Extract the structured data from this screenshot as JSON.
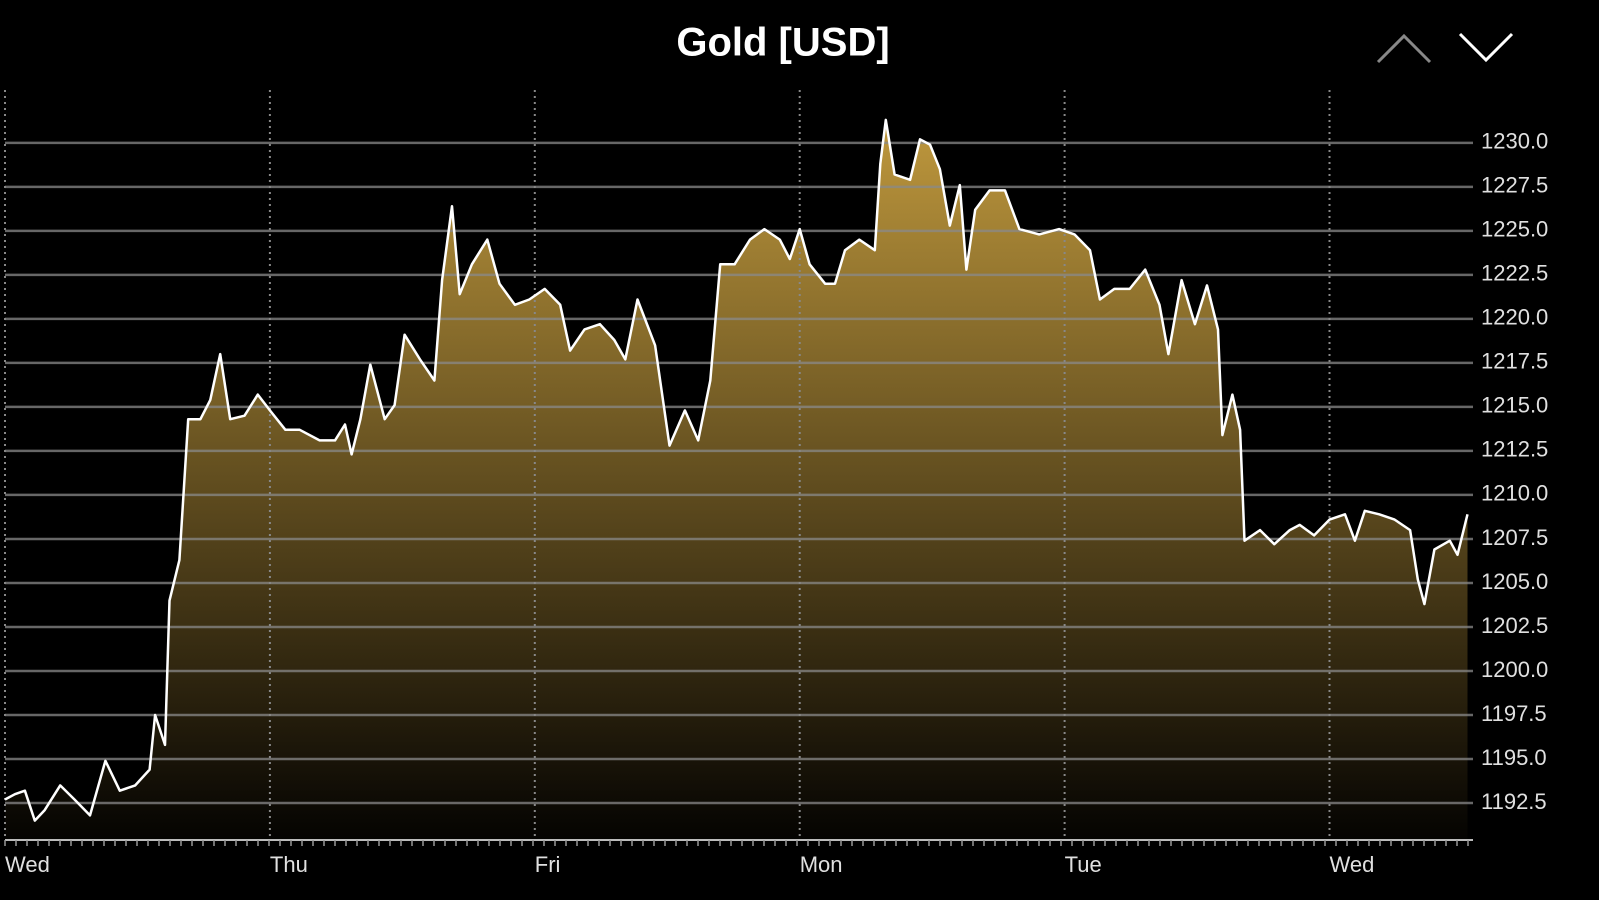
{
  "chart_data": {
    "type": "area",
    "title": "Gold [USD]",
    "x": [
      0,
      0.9,
      1.8,
      2.7,
      3.6,
      5.0,
      6.3,
      7.7,
      9.1,
      10.4,
      11.8,
      13.1,
      13.6,
      14.5,
      14.9,
      15.8,
      16.6,
      17.7,
      18.6,
      19.5,
      20.4,
      21.7,
      22.9,
      24.0,
      25.4,
      26.7,
      28.5,
      29.9,
      30.8,
      31.4,
      32.2,
      33.1,
      34.4,
      35.3,
      36.2,
      37.6,
      38.9,
      39.6,
      40.5,
      41.2,
      42.3,
      43.7,
      44.8,
      46.2,
      47.5,
      48.9,
      50.3,
      51.2,
      52.5,
      53.9,
      55.2,
      56.2,
      57.3,
      58.9,
      60.2,
      61.6,
      62.8,
      63.9,
      64.8,
      66.1,
      67.5,
      68.8,
      70.2,
      71.1,
      72.0,
      72.9,
      74.3,
      75.2,
      76.1,
      77.4,
      78.8,
      79.3,
      79.8,
      80.6,
      82.0,
      82.9,
      83.8,
      84.7,
      85.6,
      86.5,
      87.1,
      87.9,
      89.2,
      90.6,
      91.9,
      93.7,
      95.5,
      96.9,
      98.3,
      99.2,
      100.5,
      101.9,
      103.3,
      104.6,
      105.4,
      106.6,
      107.8,
      108.9,
      109.9,
      110.3,
      111.2,
      111.9,
      112.3,
      113.7,
      115.0,
      116.4,
      117.3,
      118.6,
      120.0,
      121.4,
      122.3,
      123.2,
      124.5,
      125.9,
      127.3,
      128.0,
      128.6,
      129.5,
      130.9,
      131.6,
      132.5
    ],
    "series": [
      {
        "name": "Gold",
        "color": "#ffffff",
        "values": [
          1192.7,
          1193.0,
          1193.2,
          1191.5,
          1192.1,
          1193.5,
          1192.7,
          1191.8,
          1194.9,
          1193.2,
          1193.5,
          1194.4,
          1197.5,
          1195.8,
          1204.0,
          1206.3,
          1214.3,
          1214.3,
          1215.4,
          1218.0,
          1214.3,
          1214.5,
          1215.7,
          1214.8,
          1213.7,
          1213.7,
          1213.1,
          1213.1,
          1214.0,
          1212.3,
          1214.3,
          1217.4,
          1214.3,
          1215.1,
          1219.1,
          1217.7,
          1216.5,
          1222.2,
          1226.4,
          1221.4,
          1223.1,
          1224.5,
          1222.0,
          1220.8,
          1221.1,
          1221.7,
          1220.8,
          1218.2,
          1219.4,
          1219.7,
          1218.8,
          1217.7,
          1221.1,
          1218.5,
          1212.8,
          1214.8,
          1213.1,
          1216.5,
          1223.1,
          1223.1,
          1224.5,
          1225.1,
          1224.5,
          1223.4,
          1225.1,
          1223.1,
          1222.0,
          1222.0,
          1223.9,
          1224.5,
          1223.9,
          1228.8,
          1231.3,
          1228.2,
          1227.9,
          1230.2,
          1229.9,
          1228.5,
          1225.3,
          1227.6,
          1222.8,
          1226.2,
          1227.3,
          1227.3,
          1225.1,
          1224.8,
          1225.1,
          1224.8,
          1223.9,
          1221.1,
          1221.7,
          1221.7,
          1222.8,
          1220.8,
          1218.0,
          1222.2,
          1219.7,
          1221.9,
          1219.4,
          1213.4,
          1215.7,
          1213.7,
          1207.4,
          1208.0,
          1207.2,
          1208.0,
          1208.3,
          1207.7,
          1208.6,
          1208.9,
          1207.4,
          1209.1,
          1208.9,
          1208.6,
          1208.0,
          1205.2,
          1203.8,
          1206.9,
          1207.4,
          1206.6,
          1208.9
        ]
      }
    ],
    "fill_color": "#c9a040",
    "xlim": [
      0,
      133
    ],
    "xticks": [
      {
        "value": 0,
        "label": "Wed"
      },
      {
        "value": 24,
        "label": "Thu"
      },
      {
        "value": 48,
        "label": "Fri"
      },
      {
        "value": 72,
        "label": "Mon"
      },
      {
        "value": 96,
        "label": "Tue"
      },
      {
        "value": 120,
        "label": "Wed"
      }
    ],
    "ylim": [
      1190.4,
      1233.0
    ],
    "yticks": [
      1192.5,
      {
        "value": 1195,
        "label": "1195.0"
      },
      1197.5,
      {
        "value": 1200,
        "label": "1200.0"
      },
      1202.5,
      {
        "value": 1205,
        "label": "1205.0"
      },
      1207.5,
      {
        "value": 1210,
        "label": "1210.0"
      },
      1212.5,
      {
        "value": 1215,
        "label": "1215.0"
      },
      1217.5,
      {
        "value": 1220,
        "label": "1220.0"
      },
      1222.5,
      {
        "value": 1225,
        "label": "1225.0"
      },
      1227.5,
      {
        "value": 1230,
        "label": "1230.0"
      }
    ],
    "grid": true
  }
}
